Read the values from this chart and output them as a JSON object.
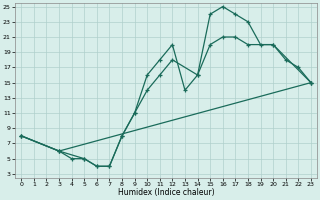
{
  "xlabel": "Humidex (Indice chaleur)",
  "bg_color": "#d8eeea",
  "line_color": "#1a6b5a",
  "grid_color": "#b0d0cc",
  "xlim": [
    -0.5,
    23.5
  ],
  "ylim": [
    2.5,
    25.5
  ],
  "xticks": [
    0,
    1,
    2,
    3,
    4,
    5,
    6,
    7,
    8,
    9,
    10,
    11,
    12,
    13,
    14,
    15,
    16,
    17,
    18,
    19,
    20,
    21,
    22,
    23
  ],
  "yticks": [
    3,
    5,
    7,
    9,
    11,
    13,
    15,
    17,
    19,
    21,
    23,
    25
  ],
  "curve1_x": [
    0,
    3,
    4,
    5,
    6,
    7,
    8,
    9,
    10,
    11,
    12,
    13,
    14,
    15,
    16,
    17,
    18,
    19,
    20,
    21,
    22,
    23
  ],
  "curve1_y": [
    8,
    6,
    5,
    5,
    4,
    4,
    8,
    11,
    16,
    18,
    20,
    14,
    16,
    24,
    25,
    24,
    23,
    20,
    20,
    18,
    17,
    15
  ],
  "curve2_x": [
    0,
    3,
    5,
    6,
    7,
    8,
    9,
    10,
    11,
    12,
    14,
    15,
    16,
    17,
    18,
    20,
    23
  ],
  "curve2_y": [
    8,
    6,
    5,
    4,
    4,
    8,
    11,
    14,
    16,
    18,
    16,
    20,
    21,
    21,
    20,
    20,
    15
  ],
  "curve3_x": [
    0,
    3,
    23
  ],
  "curve3_y": [
    8,
    6,
    15
  ]
}
